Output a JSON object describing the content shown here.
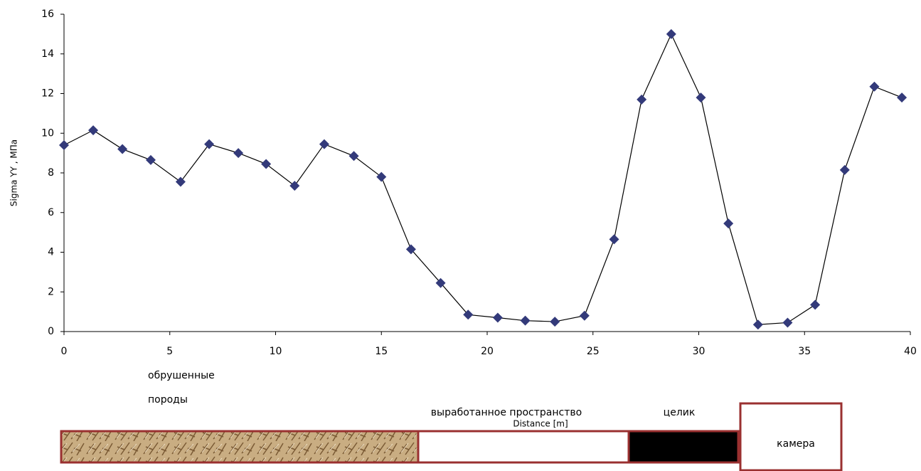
{
  "chart_data": {
    "type": "line",
    "y_label": "Sigma YY , MПa",
    "x_label": "Distance [m]",
    "annotations": [
      "обрушенные",
      "породы",
      "выработанное пространство",
      "целик",
      "камера"
    ],
    "xlim": [
      0,
      40
    ],
    "xticks": [
      0,
      5,
      10,
      15,
      20,
      25,
      30,
      35,
      40
    ],
    "ylim": [
      0,
      16
    ],
    "yticks": [
      0,
      2,
      4,
      6,
      8,
      10,
      12,
      14,
      16
    ],
    "grid": false,
    "series": [
      {
        "color": "#333a7a",
        "x": [
          0,
          1.38,
          2.76,
          4.1,
          5.51,
          6.86,
          8.24,
          9.55,
          10.9,
          12.3,
          13.7,
          15.0,
          16.4,
          17.8,
          19.1,
          20.5,
          21.8,
          23.2,
          24.6,
          26.0,
          27.3,
          28.7,
          30.1,
          31.4,
          32.8,
          34.2,
          35.5,
          36.9,
          38.3,
          39.6
        ],
        "values": [
          9.4,
          10.15,
          9.2,
          8.65,
          7.55,
          9.45,
          9.0,
          8.45,
          7.35,
          9.45,
          8.85,
          7.8,
          4.15,
          2.45,
          0.85,
          0.7,
          0.55,
          0.5,
          0.8,
          4.65,
          11.7,
          15.0,
          11.8,
          5.45,
          0.35,
          0.45,
          1.35,
          8.15,
          12.35,
          11.8
        ]
      }
    ]
  }
}
